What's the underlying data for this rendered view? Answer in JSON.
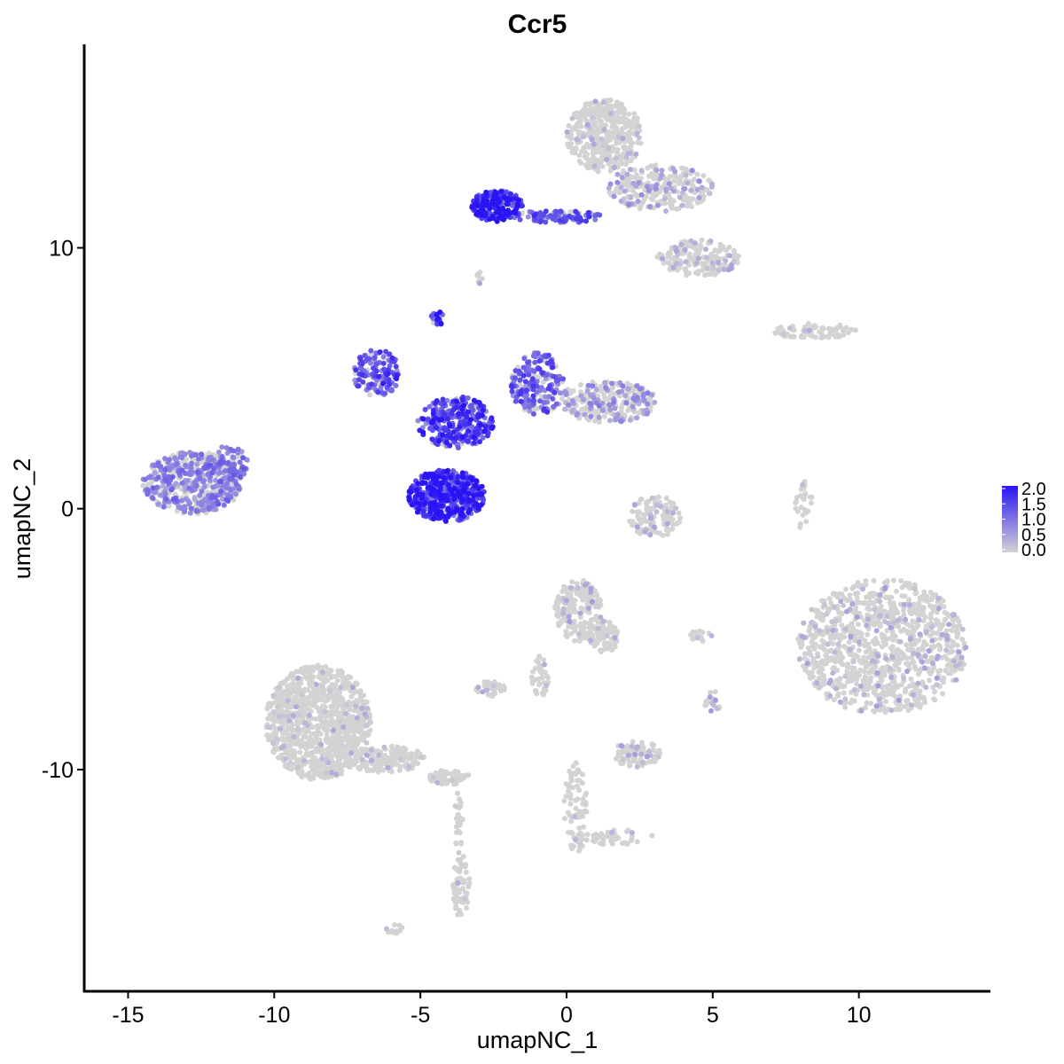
{
  "chart_data": {
    "type": "scatter",
    "title": "Ccr5",
    "xlabel": "umapNC_1",
    "ylabel": "umapNC_2",
    "xlim": [
      -16.5,
      14.5
    ],
    "ylim": [
      -18.5,
      17.8
    ],
    "x_ticks": [
      -15,
      -10,
      -5,
      0,
      5,
      10
    ],
    "y_ticks": [
      -10,
      0,
      10
    ],
    "x_tick_labels": [
      "-15",
      "-10",
      "-5",
      "0",
      "5",
      "10"
    ],
    "y_tick_labels": [
      "-10",
      "0",
      "10"
    ],
    "grid": false,
    "legend": {
      "placement": "right",
      "type": "colorbar",
      "labels": [
        "2.0",
        "1.5",
        "1.0",
        "0.5",
        "0.0"
      ],
      "values": [
        2.0,
        1.5,
        1.0,
        0.5,
        0.0
      ],
      "low_color": "#d3d3d3",
      "high_color": "#2a14f5"
    },
    "clusters": [
      {
        "cx": -12.8,
        "cy": 1.0,
        "rx": 1.7,
        "ry": 1.2,
        "n": 520,
        "mean_expr": 0.55
      },
      {
        "cx": -11.6,
        "cy": 1.7,
        "rx": 0.7,
        "ry": 0.7,
        "n": 90,
        "mean_expr": 0.6
      },
      {
        "cx": -6.5,
        "cy": 5.2,
        "rx": 0.8,
        "ry": 0.9,
        "n": 140,
        "mean_expr": 0.95
      },
      {
        "cx": -4.1,
        "cy": 0.5,
        "rx": 1.3,
        "ry": 1.0,
        "n": 520,
        "mean_expr": 1.2
      },
      {
        "cx": -3.8,
        "cy": 3.3,
        "rx": 1.3,
        "ry": 1.0,
        "n": 300,
        "mean_expr": 1.05
      },
      {
        "cx": -1.0,
        "cy": 4.8,
        "rx": 0.9,
        "ry": 1.2,
        "n": 210,
        "mean_expr": 0.8
      },
      {
        "cx": 1.4,
        "cy": 4.1,
        "rx": 1.7,
        "ry": 0.8,
        "n": 260,
        "mean_expr": 0.35
      },
      {
        "cx": -4.4,
        "cy": 7.3,
        "rx": 0.25,
        "ry": 0.25,
        "n": 18,
        "mean_expr": 1.3
      },
      {
        "cx": -2.4,
        "cy": 11.6,
        "rx": 0.9,
        "ry": 0.6,
        "n": 200,
        "mean_expr": 1.3
      },
      {
        "cx": -0.3,
        "cy": 11.2,
        "rx": 1.5,
        "ry": 0.25,
        "n": 90,
        "mean_expr": 0.9
      },
      {
        "cx": 1.3,
        "cy": 14.3,
        "rx": 1.3,
        "ry": 1.4,
        "n": 420,
        "mean_expr": 0.06
      },
      {
        "cx": 3.2,
        "cy": 12.3,
        "rx": 1.8,
        "ry": 0.9,
        "n": 240,
        "mean_expr": 0.25
      },
      {
        "cx": 4.5,
        "cy": 9.6,
        "rx": 1.4,
        "ry": 0.7,
        "n": 170,
        "mean_expr": 0.15
      },
      {
        "cx": 8.5,
        "cy": 6.8,
        "rx": 1.4,
        "ry": 0.3,
        "n": 80,
        "mean_expr": 0.03
      },
      {
        "cx": 10.8,
        "cy": -5.3,
        "rx": 2.9,
        "ry": 2.6,
        "n": 1000,
        "mean_expr": 0.12
      },
      {
        "cx": 3.0,
        "cy": -0.3,
        "rx": 0.9,
        "ry": 0.8,
        "n": 120,
        "mean_expr": 0.12
      },
      {
        "cx": 8.1,
        "cy": 0.2,
        "rx": 0.3,
        "ry": 1.0,
        "n": 30,
        "mean_expr": 0.05
      },
      {
        "cx": 0.4,
        "cy": -3.9,
        "rx": 0.8,
        "ry": 1.2,
        "n": 200,
        "mean_expr": 0.12
      },
      {
        "cx": 1.3,
        "cy": -4.9,
        "rx": 0.5,
        "ry": 0.6,
        "n": 70,
        "mean_expr": 0.05
      },
      {
        "cx": -0.9,
        "cy": -6.4,
        "rx": 0.3,
        "ry": 0.8,
        "n": 40,
        "mean_expr": 0.03
      },
      {
        "cx": -2.6,
        "cy": -6.9,
        "rx": 0.5,
        "ry": 0.3,
        "n": 45,
        "mean_expr": 0.1
      },
      {
        "cx": -8.5,
        "cy": -8.2,
        "rx": 1.8,
        "ry": 2.2,
        "n": 1000,
        "mean_expr": 0.04
      },
      {
        "cx": -6.2,
        "cy": -9.6,
        "rx": 1.4,
        "ry": 0.5,
        "n": 180,
        "mean_expr": 0.03
      },
      {
        "cx": -4.0,
        "cy": -10.3,
        "rx": 0.7,
        "ry": 0.3,
        "n": 60,
        "mean_expr": 0.02
      },
      {
        "cx": -3.6,
        "cy": -14.5,
        "rx": 0.3,
        "ry": 1.2,
        "n": 70,
        "mean_expr": 0.03
      },
      {
        "cx": -3.7,
        "cy": -12.0,
        "rx": 0.15,
        "ry": 1.2,
        "n": 25,
        "mean_expr": 0.01
      },
      {
        "cx": 2.4,
        "cy": -9.4,
        "rx": 0.8,
        "ry": 0.5,
        "n": 90,
        "mean_expr": 0.15
      },
      {
        "cx": 0.3,
        "cy": -11.5,
        "rx": 0.4,
        "ry": 1.8,
        "n": 80,
        "mean_expr": 0.01
      },
      {
        "cx": 1.8,
        "cy": -12.6,
        "rx": 1.2,
        "ry": 0.3,
        "n": 40,
        "mean_expr": 0.01
      },
      {
        "cx": 5.0,
        "cy": -7.4,
        "rx": 0.3,
        "ry": 0.4,
        "n": 20,
        "mean_expr": 0.2
      },
      {
        "cx": -3.0,
        "cy": 8.8,
        "rx": 0.15,
        "ry": 0.3,
        "n": 10,
        "mean_expr": 0.1
      },
      {
        "cx": -5.9,
        "cy": -16.1,
        "rx": 0.3,
        "ry": 0.2,
        "n": 12,
        "mean_expr": 0.0
      },
      {
        "cx": 4.5,
        "cy": -4.9,
        "rx": 0.6,
        "ry": 0.2,
        "n": 15,
        "mean_expr": 0.0
      }
    ]
  }
}
